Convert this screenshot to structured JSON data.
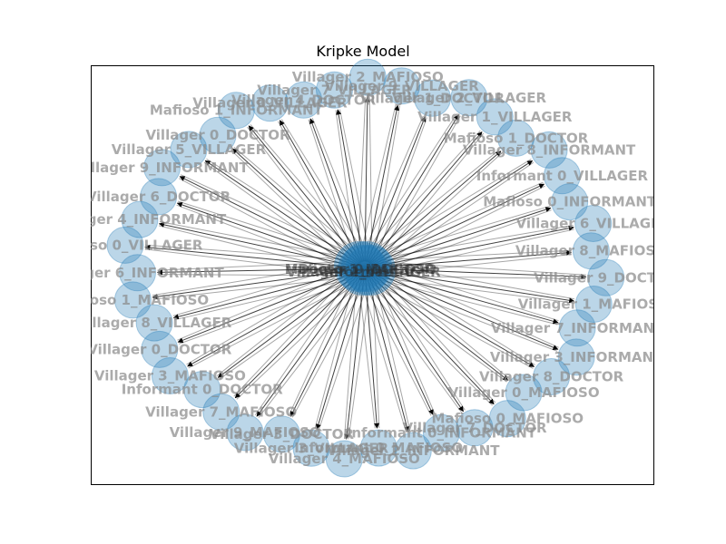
{
  "title": "Kripke Model",
  "center_labels": [
    "Mafioso 1_MAFIOSO",
    "Villager 2_VILLAGER",
    "Doctor 0_DOCTOR",
    "Informant 0"
  ],
  "nodes": [
    "Villager 4_DOCTOR",
    "Villager 0_VILLAGER",
    "Mafioso 1_INFORMANT",
    "Villager 0_DOCTOR",
    "Villager 5_VILLAGER",
    "Villager 9_INFORMANT",
    "Villager 6_DOCTOR",
    "Villager 4_INFORMANT",
    "Mafioso 0_VILLAGER",
    "Villager 6_INFORMANT",
    "Mafioso 1_MAFIOSO",
    "Villager 8_VILLAGER",
    "Villager 0_DOCTOR",
    "Villager 3_MAFIOSO",
    "Informant 0_DOCTOR",
    "Villager 7_MAFIOSO",
    "Villager 9_MAFIOSO",
    "Villager 3_DOCTOR",
    "Villager 3_VILLAGER",
    "Villager 4_MAFIOSO",
    "Informant 0_MAFIOSO",
    "Villager 2_INFORMANT",
    "Informant 0_INFORMANT",
    "Villager 7_DOCTOR",
    "Mafioso 0_MAFIOSO",
    "Villager 0_MAFIOSO",
    "Villager 8_DOCTOR",
    "Villager 3_INFORMANT",
    "Villager 7_INFORMANT",
    "Villager 1_MAFIOSO",
    "Villager 9_DOCTOR",
    "Villager 8_MAFIOSO",
    "Villager 6_VILLAGER",
    "Mafioso 0_INFORMANT",
    "Informant 0_VILLAGER",
    "Villager 8_INFORMANT",
    "Mafioso 1_DOCTOR",
    "Villager 1_VILLAGER",
    "Villager 2_VILLAGER",
    "Villager 1_DOCTOR",
    "Villager 9_VILLAGER",
    "Villager 2_MAFIOSO",
    "Villager 7_VILLAGER"
  ],
  "colors": {
    "node_fill": "#1f77b4",
    "edge": "#000000",
    "label": "#8a8a8a",
    "frame": "#000000"
  }
}
